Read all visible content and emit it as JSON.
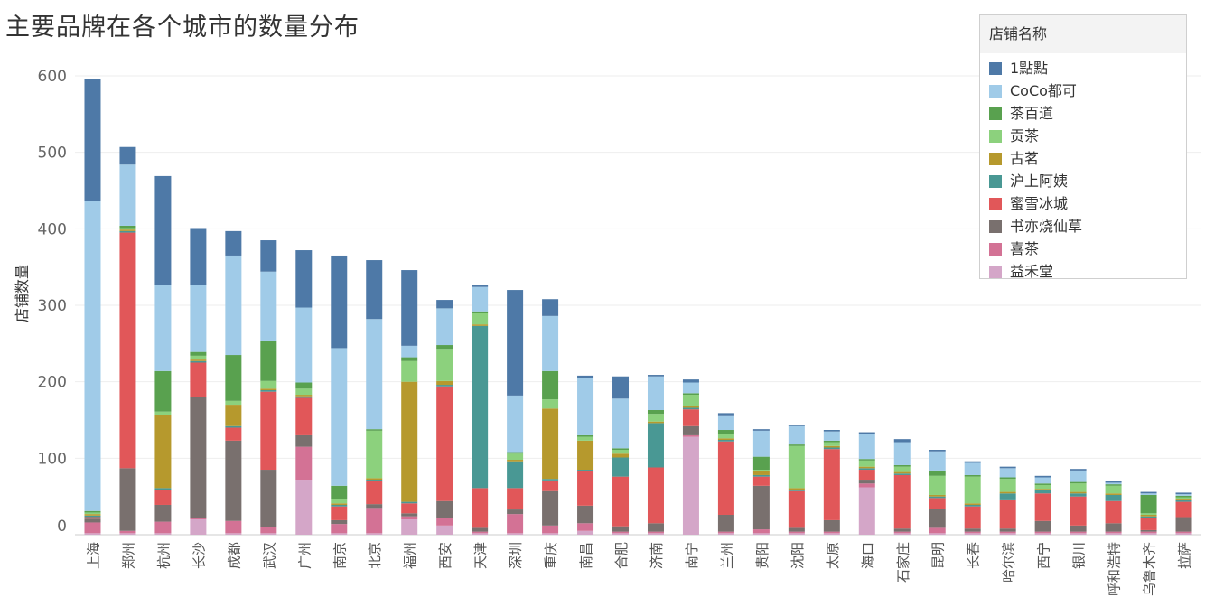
{
  "chart_data": {
    "type": "bar",
    "stacked": true,
    "title": "主要品牌在各个城市的数量分布",
    "ylabel": "店铺数量",
    "xlabel": "",
    "ylim": [
      0,
      610
    ],
    "yticks": [
      0,
      100,
      200,
      300,
      400,
      500,
      600
    ],
    "legend_title": "店铺名称",
    "legend_position": "top-right",
    "categories": [
      "上海",
      "郑州",
      "杭州",
      "长沙",
      "成都",
      "武汉",
      "广州",
      "南京",
      "北京",
      "福州",
      "西安",
      "天津",
      "深圳",
      "重庆",
      "南昌",
      "合肥",
      "济南",
      "南宁",
      "兰州",
      "贵阳",
      "沈阳",
      "太原",
      "海口",
      "石家庄",
      "昆明",
      "长春",
      "哈尔滨",
      "西宁",
      "银川",
      "呼和浩特",
      "乌鲁木齐",
      "拉萨"
    ],
    "series": [
      {
        "name": "益禾堂",
        "color": "#d4a6c8",
        "values": [
          2,
          2,
          2,
          20,
          2,
          2,
          72,
          2,
          2,
          20,
          12,
          2,
          2,
          2,
          5,
          2,
          2,
          128,
          2,
          2,
          2,
          2,
          62,
          2,
          2,
          2,
          2,
          2,
          2,
          2,
          2,
          2
        ]
      },
      {
        "name": "喜茶",
        "color": "#d37295",
        "values": [
          14,
          3,
          15,
          2,
          16,
          8,
          43,
          12,
          33,
          4,
          10,
          2,
          25,
          10,
          10,
          2,
          2,
          2,
          2,
          5,
          2,
          2,
          5,
          2,
          7,
          2,
          2,
          2,
          2,
          2,
          2,
          2
        ]
      },
      {
        "name": "书亦烧仙草",
        "color": "#79706e",
        "values": [
          5,
          82,
          22,
          158,
          105,
          75,
          15,
          5,
          5,
          4,
          22,
          5,
          6,
          45,
          23,
          7,
          11,
          12,
          22,
          57,
          5,
          15,
          5,
          4,
          25,
          4,
          4,
          14,
          8,
          11,
          2,
          19
        ]
      },
      {
        "name": "蜜雪冰城",
        "color": "#e15759",
        "values": [
          2,
          308,
          20,
          45,
          17,
          102,
          49,
          18,
          30,
          13,
          150,
          52,
          28,
          14,
          45,
          65,
          73,
          22,
          96,
          12,
          48,
          93,
          13,
          70,
          14,
          29,
          37,
          36,
          38,
          29,
          16,
          20
        ]
      },
      {
        "name": "沪上阿姨",
        "color": "#499894",
        "values": [
          2,
          2,
          2,
          2,
          2,
          2,
          2,
          2,
          2,
          2,
          2,
          212,
          35,
          2,
          2,
          25,
          58,
          2,
          2,
          2,
          2,
          2,
          2,
          2,
          2,
          2,
          9,
          4,
          4,
          8,
          2,
          2
        ]
      },
      {
        "name": "古茗",
        "color": "#b6992d",
        "values": [
          2,
          2,
          95,
          2,
          28,
          2,
          2,
          2,
          2,
          157,
          5,
          2,
          2,
          92,
          38,
          5,
          2,
          2,
          2,
          5,
          2,
          2,
          2,
          2,
          2,
          2,
          2,
          2,
          2,
          2,
          2,
          2
        ]
      },
      {
        "name": "贡茶",
        "color": "#8cd17d",
        "values": [
          2,
          2,
          5,
          5,
          5,
          10,
          8,
          5,
          62,
          27,
          42,
          15,
          8,
          12,
          5,
          5,
          10,
          15,
          6,
          2,
          55,
          5,
          8,
          7,
          25,
          35,
          17,
          5,
          11,
          10,
          2,
          2
        ]
      },
      {
        "name": "茶百道",
        "color": "#59a14f",
        "values": [
          2,
          3,
          53,
          5,
          60,
          53,
          8,
          18,
          2,
          5,
          5,
          2,
          2,
          37,
          2,
          2,
          5,
          2,
          5,
          17,
          2,
          2,
          2,
          2,
          7,
          2,
          2,
          2,
          2,
          2,
          24,
          2
        ]
      },
      {
        "name": "CoCo都可",
        "color": "#a0cbe8",
        "values": [
          405,
          80,
          113,
          87,
          130,
          90,
          98,
          180,
          144,
          15,
          48,
          32,
          74,
          72,
          75,
          65,
          44,
          14,
          18,
          34,
          24,
          12,
          33,
          30,
          25,
          16,
          12,
          8,
          15,
          2,
          2,
          2
        ]
      },
      {
        "name": "1點點",
        "color": "#4e79a7",
        "values": [
          160,
          23,
          142,
          75,
          32,
          41,
          75,
          121,
          77,
          99,
          11,
          2,
          138,
          22,
          3,
          29,
          2,
          4,
          4,
          2,
          2,
          2,
          2,
          4,
          2,
          2,
          2,
          2,
          2,
          2,
          2,
          2
        ]
      }
    ]
  }
}
